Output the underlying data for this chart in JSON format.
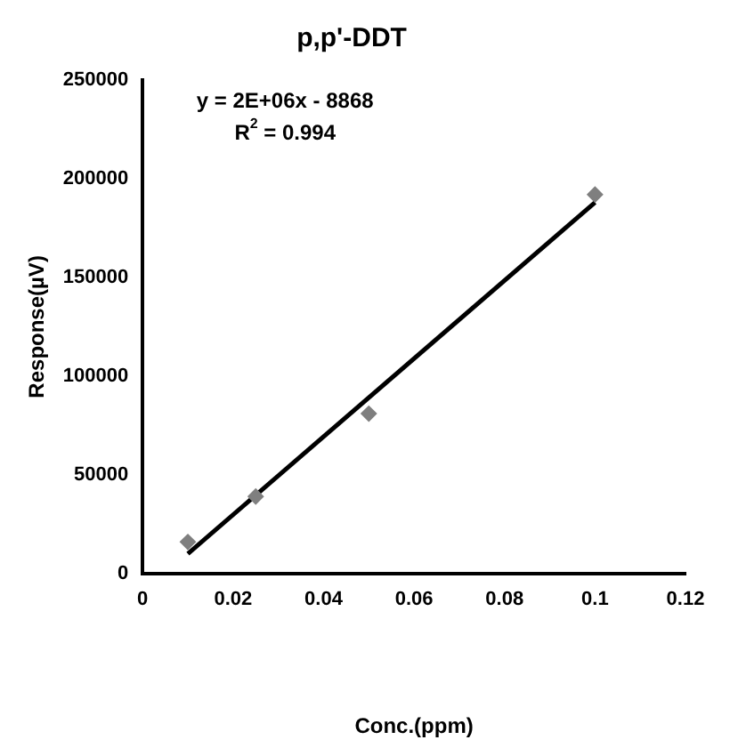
{
  "chart_data": {
    "type": "scatter",
    "title": "p,p'-DDT",
    "xlabel": "Conc.(ppm)",
    "ylabel": "Response(µV)",
    "annotations": [
      "y = 2E+06x - 8868",
      "R$^{2}$ = 0.994"
    ],
    "series": [
      {
        "type": "scatter",
        "color": "#7f7f7f",
        "marker": "diamond",
        "x": [
          0.01,
          0.025,
          0.05,
          0.1
        ],
        "values": [
          16000,
          39000,
          81000,
          192000
        ]
      },
      {
        "type": "line",
        "color": "#000000",
        "marker": "none",
        "line_style": "solid",
        "x": [
          0.01,
          0.1
        ],
        "values": [
          10000,
          188000
        ]
      }
    ],
    "xlim": [
      0,
      0.12
    ],
    "xticks": [
      0,
      0.02,
      0.04,
      0.06,
      0.08,
      0.1,
      0.12
    ],
    "ylim": [
      0,
      250000
    ],
    "yticks": [
      0,
      50000,
      100000,
      150000,
      200000,
      250000
    ],
    "grid": false,
    "legend": false
  }
}
